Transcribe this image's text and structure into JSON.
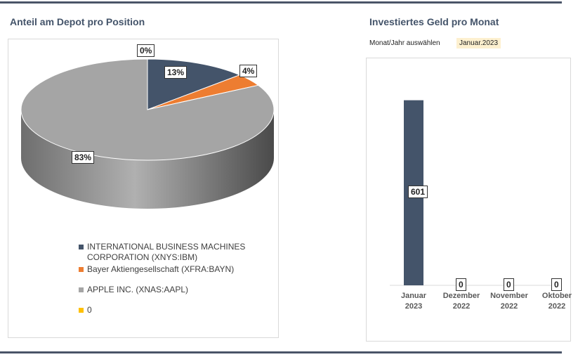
{
  "left": {
    "title": "Anteil am Depot pro Position"
  },
  "right": {
    "title": "Investiertes Geld pro Monat",
    "selector_label": "Monat/Jahr auswählen",
    "selector_value": "Januar.2023"
  },
  "chart_data": [
    {
      "type": "pie",
      "title": "Anteil am Depot pro Position",
      "style": "3d",
      "labels": [
        "INTERNATIONAL BUSINESS MACHINES CORPORATION (XNYS:IBM)",
        "Bayer Aktiengesellschaft (XFRA:BAYN)",
        "0",
        "APPLE INC. (XNAS:AAPL)"
      ],
      "legend_order": [
        0,
        1,
        3,
        2
      ],
      "values": [
        13,
        4,
        0,
        83
      ],
      "data_labels": [
        "13%",
        "4%",
        "0%",
        "83%"
      ],
      "colors": [
        "#44546a",
        "#ed7d31",
        "#ffc000",
        "#a5a5a5"
      ],
      "legend": "bottom"
    },
    {
      "type": "bar",
      "title": "Investiertes Geld pro Monat",
      "categories": [
        [
          "Januar",
          "2023"
        ],
        [
          "Dezember",
          "2022"
        ],
        [
          "November",
          "2022"
        ],
        [
          "Oktober",
          "2022"
        ]
      ],
      "values": [
        601,
        0,
        0,
        0
      ],
      "color": "#44546a",
      "ylim": [
        0,
        680
      ]
    }
  ]
}
